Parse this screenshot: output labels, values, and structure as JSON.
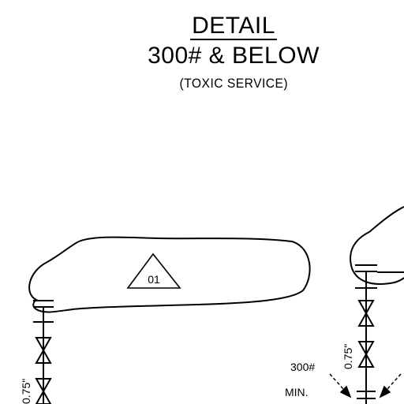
{
  "title": {
    "line1": "DETAIL",
    "line2": "300# & BELOW",
    "line3": "(TOXIC SERVICE)"
  },
  "tag": "01",
  "labels": {
    "left_dim": "0.75\"",
    "right_dim": "0.75\"",
    "rating": "300#",
    "min": "MIN."
  }
}
